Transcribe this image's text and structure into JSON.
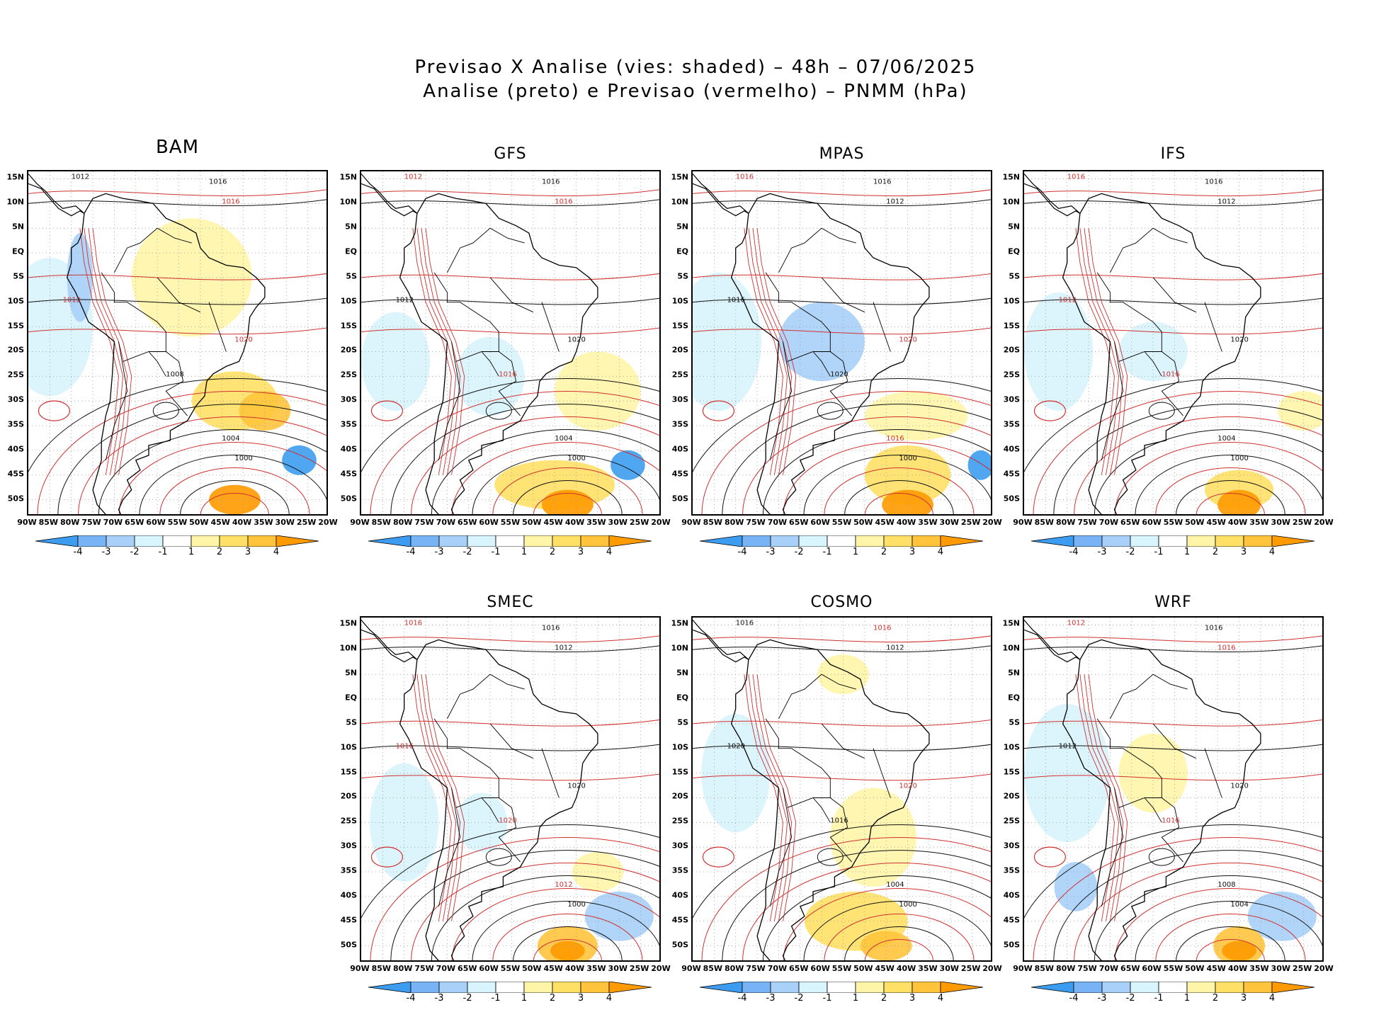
{
  "title_line1": "Previsao X Analise (vies: shaded) – 48h – 07/06/2025",
  "title_line2": "Analise (preto) e Previsao (vermelho) – PNMM (hPa)",
  "lat_labels": [
    "15N",
    "10N",
    "5N",
    "EQ",
    "5S",
    "10S",
    "15S",
    "20S",
    "25S",
    "30S",
    "35S",
    "40S",
    "45S",
    "50S"
  ],
  "lon_labels": [
    "90W",
    "85W",
    "80W",
    "75W",
    "70W",
    "65W",
    "60W",
    "55W",
    "50W",
    "45W",
    "40W",
    "35W",
    "30W",
    "25W",
    "20W"
  ],
  "colorbar": {
    "labels": [
      "-4",
      "-3",
      "-2",
      "-1",
      "1",
      "2",
      "3",
      "4"
    ],
    "colors": [
      "#3c9cf0",
      "#78b4f5",
      "#a8d0f8",
      "#d8f4fc",
      "#ffffff",
      "#fff5a8",
      "#ffe066",
      "#ffc43c",
      "#ff9a00"
    ]
  },
  "panels": [
    {
      "name": "BAM",
      "contours": [
        {
          "t": "1012",
          "c": "k"
        },
        {
          "t": "1016",
          "c": "k"
        },
        {
          "t": "1016",
          "c": "r"
        },
        {
          "t": "1012",
          "c": "r"
        },
        {
          "t": "1020",
          "c": "r"
        },
        {
          "t": "1008",
          "c": "k"
        },
        {
          "t": "1004",
          "c": "k"
        },
        {
          "t": "1000",
          "c": "k"
        }
      ]
    },
    {
      "name": "GFS",
      "contours": [
        {
          "t": "1012",
          "c": "r"
        },
        {
          "t": "1016",
          "c": "k"
        },
        {
          "t": "1016",
          "c": "r"
        },
        {
          "t": "1012",
          "c": "k"
        },
        {
          "t": "1020",
          "c": "k"
        },
        {
          "t": "1016",
          "c": "r"
        },
        {
          "t": "1004",
          "c": "k"
        },
        {
          "t": "1000",
          "c": "k"
        }
      ]
    },
    {
      "name": "MPAS",
      "contours": [
        {
          "t": "1016",
          "c": "r"
        },
        {
          "t": "1016",
          "c": "k"
        },
        {
          "t": "1012",
          "c": "k"
        },
        {
          "t": "1016",
          "c": "k"
        },
        {
          "t": "1020",
          "c": "r"
        },
        {
          "t": "1020",
          "c": "k"
        },
        {
          "t": "1016",
          "c": "r"
        },
        {
          "t": "1000",
          "c": "k"
        }
      ]
    },
    {
      "name": "IFS",
      "contours": [
        {
          "t": "1016",
          "c": "r"
        },
        {
          "t": "1016",
          "c": "k"
        },
        {
          "t": "1012",
          "c": "k"
        },
        {
          "t": "1012",
          "c": "r"
        },
        {
          "t": "1020",
          "c": "k"
        },
        {
          "t": "1016",
          "c": "r"
        },
        {
          "t": "1004",
          "c": "k"
        },
        {
          "t": "1000",
          "c": "k"
        }
      ]
    },
    {
      "name": "SMEC",
      "contours": [
        {
          "t": "1016",
          "c": "r"
        },
        {
          "t": "1016",
          "c": "k"
        },
        {
          "t": "1012",
          "c": "k"
        },
        {
          "t": "1016",
          "c": "r"
        },
        {
          "t": "1020",
          "c": "k"
        },
        {
          "t": "1020",
          "c": "r"
        },
        {
          "t": "1012",
          "c": "r"
        },
        {
          "t": "1000",
          "c": "k"
        }
      ]
    },
    {
      "name": "COSMO",
      "contours": [
        {
          "t": "1016",
          "c": "k"
        },
        {
          "t": "1016",
          "c": "r"
        },
        {
          "t": "1012",
          "c": "k"
        },
        {
          "t": "1020",
          "c": "k"
        },
        {
          "t": "1020",
          "c": "r"
        },
        {
          "t": "1016",
          "c": "k"
        },
        {
          "t": "1004",
          "c": "k"
        },
        {
          "t": "1000",
          "c": "k"
        }
      ]
    },
    {
      "name": "WRF",
      "contours": [
        {
          "t": "1012",
          "c": "r"
        },
        {
          "t": "1016",
          "c": "k"
        },
        {
          "t": "1016",
          "c": "r"
        },
        {
          "t": "1012",
          "c": "k"
        },
        {
          "t": "1020",
          "c": "k"
        },
        {
          "t": "1016",
          "c": "r"
        },
        {
          "t": "1008",
          "c": "k"
        },
        {
          "t": "1004",
          "c": "k"
        }
      ]
    }
  ]
}
